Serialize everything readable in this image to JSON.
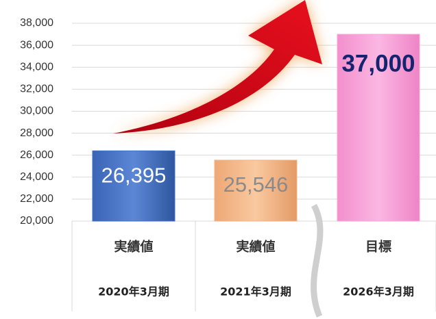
{
  "chart_data": {
    "type": "bar",
    "categories": [
      "実績値",
      "実績値",
      "目標"
    ],
    "periods": [
      "2020年3月期",
      "2021年3月期",
      "2026年3月期"
    ],
    "values": [
      26395,
      25546,
      37000
    ],
    "value_labels": [
      "26,395",
      "25,546",
      "37,000"
    ],
    "colors": [
      "#4472c4",
      "#f4b183",
      "#f8a6da"
    ],
    "ylim": [
      20000,
      38000
    ],
    "yticks": [
      {
        "value": 20000,
        "label": "20,000"
      },
      {
        "value": 22000,
        "label": "22,000"
      },
      {
        "value": 24000,
        "label": "24,000"
      },
      {
        "value": 26000,
        "label": "26,000"
      },
      {
        "value": 28000,
        "label": "28,000"
      },
      {
        "value": 30000,
        "label": "30,000"
      },
      {
        "value": 32000,
        "label": "32,000"
      },
      {
        "value": 34000,
        "label": "34,000"
      },
      {
        "value": 36000,
        "label": "36,000"
      },
      {
        "value": 38000,
        "label": "38,000"
      }
    ],
    "grid": true
  }
}
